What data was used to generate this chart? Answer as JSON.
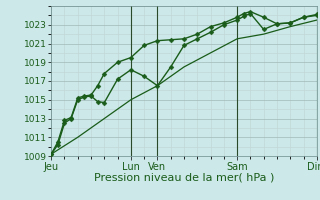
{
  "title": "",
  "xlabel": "Pression niveau de la mer( hPa )",
  "bg_color": "#cce8e8",
  "plot_bg_color": "#cce8e8",
  "grid_color_major": "#b8c8c8",
  "grid_color_minor": "#d4e4e4",
  "line_color": "#1a5c1a",
  "ylim": [
    1009,
    1025
  ],
  "yticks": [
    1009,
    1011,
    1013,
    1015,
    1017,
    1019,
    1021,
    1023
  ],
  "x_tick_labels": [
    "Jeu",
    "Lun",
    "Ven",
    "Sam",
    "Dim"
  ],
  "x_tick_positions": [
    0,
    6,
    8,
    14,
    20
  ],
  "vlines": [
    6,
    8,
    14,
    20
  ],
  "line1_x": [
    0,
    0.5,
    1.0,
    1.5,
    2.0,
    2.5,
    3.0,
    3.5,
    4.0,
    5.0,
    6.0,
    7.0,
    8.0,
    9.0,
    10.0,
    11.0,
    12.0,
    13.0,
    14.0,
    14.5,
    15.0,
    16.0,
    17.0,
    18.0,
    19.0,
    20.0
  ],
  "line1_y": [
    1009.2,
    1010.5,
    1012.8,
    1013.1,
    1015.2,
    1015.4,
    1015.5,
    1016.5,
    1017.8,
    1019.0,
    1019.5,
    1020.8,
    1021.3,
    1021.4,
    1021.5,
    1022.0,
    1022.8,
    1023.2,
    1023.8,
    1024.2,
    1024.4,
    1023.8,
    1023.1,
    1023.2,
    1023.8,
    1024.1
  ],
  "line2_x": [
    0,
    0.5,
    1.0,
    1.5,
    2.0,
    2.5,
    3.0,
    3.5,
    4.0,
    5.0,
    6.0,
    7.0,
    8.0,
    9.0,
    10.0,
    11.0,
    12.0,
    13.0,
    14.0,
    14.5,
    15.0,
    16.0,
    17.0,
    18.0,
    19.0,
    20.0
  ],
  "line2_y": [
    1009.2,
    1010.2,
    1012.5,
    1013.0,
    1015.0,
    1015.3,
    1015.4,
    1014.8,
    1014.7,
    1017.2,
    1018.2,
    1017.5,
    1016.5,
    1018.5,
    1020.8,
    1021.5,
    1022.2,
    1023.0,
    1023.5,
    1023.9,
    1024.2,
    1022.5,
    1023.1,
    1023.2,
    1023.8,
    1024.0
  ],
  "line3_x": [
    0,
    2,
    4,
    6,
    8,
    10,
    12,
    14,
    16,
    18,
    20
  ],
  "line3_y": [
    1009.2,
    1011.0,
    1013.0,
    1015.0,
    1016.5,
    1018.5,
    1020.0,
    1021.5,
    1022.0,
    1022.8,
    1023.5
  ],
  "marker_size": 2.5,
  "linewidth1": 1.0,
  "linewidth2": 1.0,
  "linewidth3": 0.9,
  "fontsize_xlabel": 8,
  "fontsize_ytick": 6.5,
  "fontsize_xtick": 7
}
